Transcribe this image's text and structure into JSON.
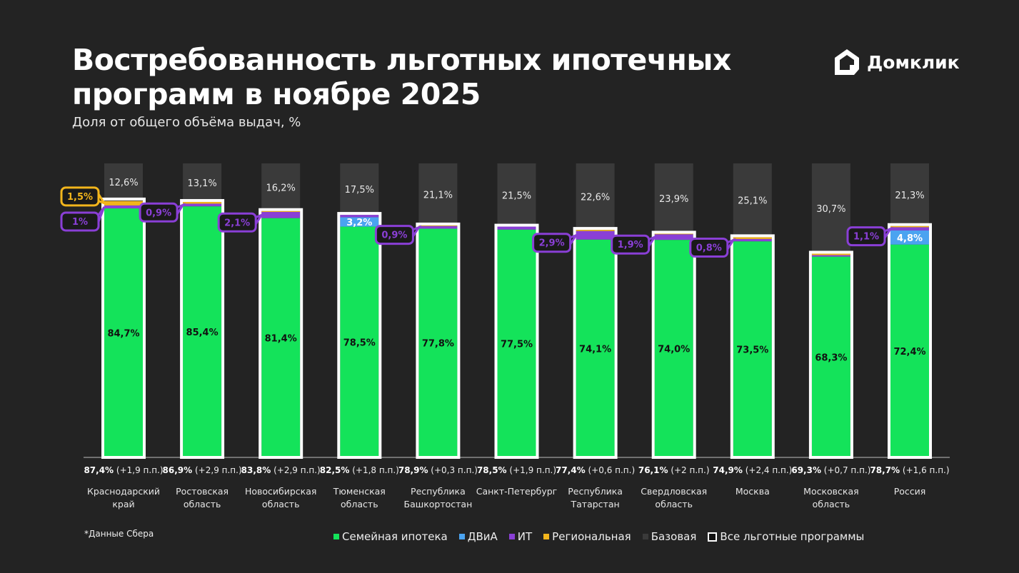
{
  "title": "Востребованность льготных ипотечных программ в ноябре 2025",
  "title_lines": [
    "Востребованность льготных ипотечных",
    "программ в ноябре 2025"
  ],
  "subtitle": "Доля от общего объёма выдач, %",
  "logo": "Домклик",
  "footnote": "*Данные Сбера",
  "colors": {
    "family": "#14e35a",
    "dvia": "#4aa3f0",
    "it": "#8a3fd6",
    "regional": "#f2b51c",
    "base": "#3a3a3a",
    "all": "#ffffff",
    "background": "#232323"
  },
  "chart_data": {
    "type": "bar",
    "stacked": true,
    "ylim": [
      0,
      100
    ],
    "unit": "%",
    "categories": [
      [
        "Краснодарский",
        "край"
      ],
      [
        "Ростовская",
        "область"
      ],
      [
        "Новосибирская",
        "область"
      ],
      [
        "Тюменская",
        "область"
      ],
      [
        "Республика",
        "Башкортостан"
      ],
      [
        "Санкт-Петербург"
      ],
      [
        "Республика",
        "Татарстан"
      ],
      [
        "Свердловская",
        "область"
      ],
      [
        "Москва"
      ],
      [
        "Московская",
        "область"
      ],
      [
        "Россия"
      ]
    ],
    "series": [
      {
        "key": "family",
        "name": "Семейная ипотека",
        "values": [
          84.7,
          85.4,
          81.4,
          78.5,
          77.8,
          77.5,
          74.1,
          74.0,
          73.5,
          68.3,
          72.4
        ],
        "labels": [
          "84,7%",
          "85,4%",
          "81,4%",
          "78,5%",
          "77,8%",
          "77,5%",
          "74,1%",
          "74,0%",
          "73,5%",
          "68,3%",
          "72,4%"
        ]
      },
      {
        "key": "dvia",
        "name": "ДВиА",
        "values": [
          0,
          0,
          0,
          3.2,
          0,
          0,
          0,
          0,
          0,
          0,
          4.8
        ],
        "labels": [
          null,
          null,
          null,
          "3,2%",
          null,
          null,
          null,
          null,
          null,
          null,
          "4,8%"
        ]
      },
      {
        "key": "it",
        "name": "ИТ",
        "values": [
          1.0,
          0.9,
          2.1,
          0.8,
          0.9,
          1.0,
          2.9,
          1.9,
          0.8,
          0.5,
          1.1
        ],
        "labels": [
          "1%",
          "0,9%",
          "2,1%",
          null,
          "0,9%",
          null,
          "2,9%",
          "1,9%",
          "0,8%",
          null,
          "1,1%"
        ]
      },
      {
        "key": "regional",
        "name": "Региональная",
        "values": [
          1.5,
          0.6,
          0.3,
          0,
          0.2,
          0,
          0.4,
          0.2,
          0.6,
          0.5,
          0.4
        ],
        "labels": [
          "1,5%",
          null,
          null,
          null,
          null,
          null,
          null,
          null,
          null,
          null,
          null
        ]
      },
      {
        "key": "base",
        "name": "Базовая",
        "values": [
          12.6,
          13.1,
          16.2,
          17.5,
          21.1,
          21.5,
          22.6,
          23.9,
          25.1,
          30.7,
          21.3
        ],
        "labels": [
          "12,6%",
          "13,1%",
          "16,2%",
          "17,5%",
          "21,1%",
          "21,5%",
          "22,6%",
          "23,9%",
          "25,1%",
          "30,7%",
          "21,3%"
        ]
      }
    ],
    "all_programs": {
      "name": "Все льготные программы",
      "values": [
        87.4,
        86.9,
        83.8,
        82.5,
        78.9,
        78.5,
        77.4,
        76.1,
        74.9,
        69.3,
        78.7
      ],
      "labels": [
        "87,4%",
        "86,9%",
        "83,8%",
        "82,5%",
        "78,9%",
        "78,5%",
        "77,4%",
        "76,1%",
        "74,9%",
        "69,3%",
        "78,7%"
      ],
      "change_labels": [
        "(+1,9 п.п.)",
        "(+2,9 п.п.)",
        "(+2,9 п.п.)",
        "(+1,8 п.п.)",
        "(+0,3 п.п.)",
        "(+1,9 п.п.)",
        "(+0,6 п.п.)",
        "(+2 п.п.)",
        "(+2,4 п.п.)",
        "(+0,7 п.п.)",
        "(+1,6 п.п.)"
      ]
    },
    "legend": [
      "Семейная ипотека",
      "ДВиА",
      "ИТ",
      "Региональная",
      "Базовая",
      "Все льготные программы"
    ],
    "legend_position": "bottom"
  }
}
